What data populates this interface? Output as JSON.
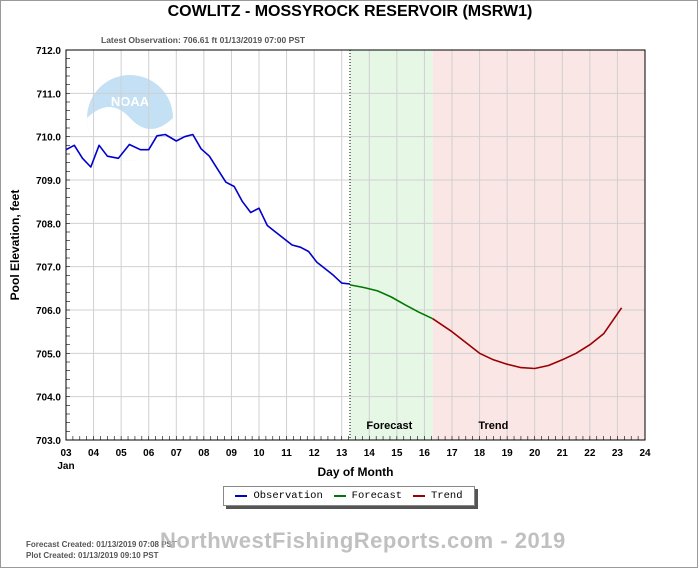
{
  "header": {
    "title": "COWLITZ - MOSSYROCK RESERVOIR  (MSRW1)",
    "latest_observation": "Latest Observation: 706.61 ft 01/13/2019 07:00 PST"
  },
  "legend": {
    "observation": "Observation",
    "forecast": "Forecast",
    "trend": "Trend"
  },
  "footer": {
    "forecast_created": "Forecast Created: 01/13/2019 07:08 PST",
    "plot_created": "Plot Created: 01/13/2019 09:10 PST",
    "watermark": "NorthwestFishingReports.com - 2019"
  },
  "logo": {
    "text": "NOAA"
  },
  "colors": {
    "observation": "#0000cc",
    "forecast": "#007700",
    "trend": "#990000",
    "forecast_bg": "#e6f7e6",
    "trend_bg": "#fbe6e6",
    "grid": "#d0d0d0"
  },
  "chart_data": {
    "type": "line",
    "title": "COWLITZ - MOSSYROCK RESERVOIR  (MSRW1)",
    "xlabel": "Day of Month",
    "ylabel": "Pool Elevation, feet",
    "xlim": [
      3,
      24
    ],
    "ylim": [
      703.0,
      712.0
    ],
    "x_ticks": [
      "03",
      "04",
      "05",
      "06",
      "07",
      "08",
      "09",
      "10",
      "11",
      "12",
      "13",
      "14",
      "15",
      "16",
      "17",
      "18",
      "19",
      "20",
      "21",
      "22",
      "23",
      "24"
    ],
    "x_tick_sublabel": "Jan",
    "y_ticks": [
      "703.0",
      "704.0",
      "705.0",
      "706.0",
      "707.0",
      "708.0",
      "709.0",
      "710.0",
      "711.0",
      "712.0"
    ],
    "grid": true,
    "regions": [
      {
        "label": "Forecast",
        "x_start": 13.3,
        "x_end": 16.3
      },
      {
        "label": "Trend",
        "x_start": 16.3,
        "x_end": 24.0
      }
    ],
    "observation_marker_x": 13.3,
    "series": [
      {
        "name": "Observation",
        "x": [
          3.0,
          3.3,
          3.6,
          3.9,
          4.2,
          4.5,
          4.9,
          5.3,
          5.7,
          6.0,
          6.3,
          6.6,
          7.0,
          7.3,
          7.6,
          7.9,
          8.2,
          8.5,
          8.8,
          9.1,
          9.4,
          9.7,
          10.0,
          10.3,
          10.6,
          10.9,
          11.2,
          11.5,
          11.8,
          12.1,
          12.4,
          12.7,
          13.0,
          13.3
        ],
        "y": [
          709.7,
          709.8,
          709.5,
          709.3,
          709.8,
          709.55,
          709.5,
          709.82,
          709.7,
          709.7,
          710.02,
          710.05,
          709.9,
          710.0,
          710.05,
          709.72,
          709.55,
          709.25,
          708.95,
          708.85,
          708.5,
          708.25,
          708.35,
          707.95,
          707.8,
          707.65,
          707.5,
          707.45,
          707.35,
          707.1,
          706.95,
          706.8,
          706.62,
          706.6
        ]
      },
      {
        "name": "Forecast",
        "x": [
          13.3,
          13.8,
          14.3,
          14.8,
          15.3,
          15.8,
          16.3
        ],
        "y": [
          706.58,
          706.52,
          706.44,
          706.3,
          706.12,
          705.95,
          705.8
        ]
      },
      {
        "name": "Trend",
        "x": [
          16.3,
          17.0,
          17.5,
          18.0,
          18.5,
          19.0,
          19.5,
          20.0,
          20.5,
          21.0,
          21.5,
          22.0,
          22.5,
          23.15
        ],
        "y": [
          705.8,
          705.5,
          705.25,
          705.0,
          704.85,
          704.75,
          704.67,
          704.65,
          704.72,
          704.85,
          705.0,
          705.2,
          705.45,
          706.05
        ]
      }
    ]
  }
}
